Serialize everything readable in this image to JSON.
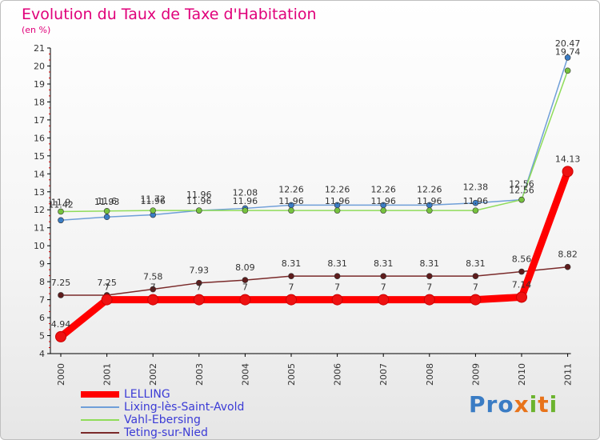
{
  "title": "Evolution du Taux de Taxe d'Habitation",
  "unit": "(en %)",
  "brand": {
    "text": "Proxiti",
    "letters": [
      {
        "ch": "P",
        "color": "#3a7cc4"
      },
      {
        "ch": "r",
        "color": "#3a7cc4"
      },
      {
        "ch": "o",
        "color": "#3a7cc4"
      },
      {
        "ch": "x",
        "color": "#e8731a"
      },
      {
        "ch": "i",
        "color": "#6bb32e"
      },
      {
        "ch": "t",
        "color": "#e8731a"
      },
      {
        "ch": "i",
        "color": "#6bb32e"
      }
    ]
  },
  "chart_data": {
    "type": "line",
    "x": [
      "2000",
      "2001",
      "2002",
      "2003",
      "2004",
      "2005",
      "2006",
      "2007",
      "2008",
      "2009",
      "2010",
      "2011"
    ],
    "ylim": [
      4,
      21
    ],
    "yticks": [
      4,
      5,
      6,
      7,
      8,
      9,
      10,
      11,
      12,
      13,
      14,
      15,
      16,
      17,
      18,
      19,
      20,
      21
    ],
    "grid": false,
    "legend_position": "bottom-left",
    "series": [
      {
        "name": "LELLING",
        "color": "#ff0000",
        "marker": "#ee1111",
        "values": [
          4.94,
          7,
          7,
          7,
          7,
          7,
          7,
          7,
          7,
          7,
          7.14,
          14.13
        ],
        "labels": [
          "4.94",
          "7",
          "7",
          "7",
          "7",
          "7",
          "7",
          "7",
          "7",
          "7",
          "7.14",
          "14.13"
        ]
      },
      {
        "name": "Lixing-lès-Saint-Avold",
        "color": "#6f9fd8",
        "marker": "#3a7cc4",
        "values": [
          11.42,
          11.6,
          11.72,
          11.96,
          12.08,
          12.26,
          12.26,
          12.26,
          12.26,
          12.38,
          12.56,
          20.47
        ],
        "labels": [
          "11.42",
          "11.6",
          "11.72",
          "11.96",
          "12.08",
          "12.26",
          "12.26",
          "12.26",
          "12.26",
          "12.38",
          "12.56",
          "20.47"
        ]
      },
      {
        "name": "Vahl-Ebersing",
        "color": "#8fdc5a",
        "marker": "#76c23e",
        "values": [
          11.9,
          11.93,
          11.96,
          11.96,
          11.96,
          11.96,
          11.96,
          11.96,
          11.96,
          11.96,
          12.56,
          19.74
        ],
        "labels": [
          "11.9",
          "11.93",
          "11.96",
          "11.96",
          "11.96",
          "11.96",
          "11.96",
          "11.96",
          "11.96",
          "11.96",
          "12.56",
          "19.74"
        ]
      },
      {
        "name": "Teting-sur-Nied",
        "color": "#7a2a2a",
        "marker": "#5e1c1c",
        "values": [
          7.25,
          7.25,
          7.58,
          7.93,
          8.09,
          8.31,
          8.31,
          8.31,
          8.31,
          8.31,
          8.56,
          8.82
        ],
        "labels": [
          "7.25",
          "7.25",
          "7.58",
          "7.93",
          "8.09",
          "8.31",
          "8.31",
          "8.31",
          "8.31",
          "8.31",
          "8.56",
          "8.82"
        ]
      }
    ]
  }
}
